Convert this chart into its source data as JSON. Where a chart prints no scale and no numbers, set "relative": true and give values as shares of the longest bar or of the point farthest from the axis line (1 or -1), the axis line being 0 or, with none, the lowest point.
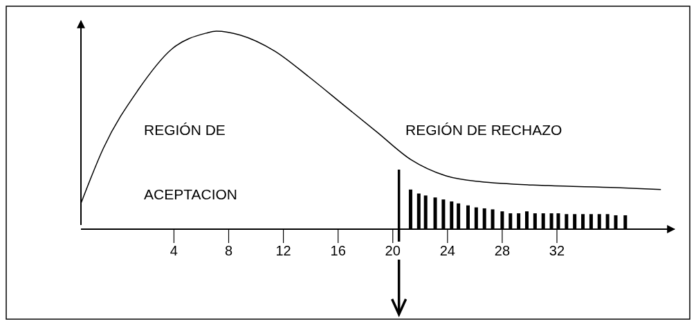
{
  "chart_data": {
    "type": "line",
    "relative": true,
    "xlim": [
      -2.8,
      40.6
    ],
    "xticks": [
      4,
      8,
      12,
      16,
      20,
      24,
      28,
      32
    ],
    "tick_labels": "x",
    "grid": false,
    "marker": "none",
    "line_style": "solid",
    "annotations": [
      "REGIÓN DE",
      "ACEPTACION",
      "REGIÓN DE RECHAZO"
    ],
    "ref_lines": [
      {
        "axis": "x",
        "value": 20.45,
        "color": "#000000"
      }
    ],
    "series": [
      {
        "color": "#000000",
        "x": [
          -2.8,
          -1.15,
          1.35,
          3.85,
          6.35,
          7.1,
          8.85,
          11.35,
          13.85,
          16.35,
          18.85,
          21.35,
          23.85,
          26.35,
          31.35,
          36.35,
          39.6
        ],
        "values": [
          0.13,
          0.41,
          0.7,
          0.91,
          0.99,
          1,
          0.98,
          0.9,
          0.77,
          0.63,
          0.49,
          0.35,
          0.27,
          0.24,
          0.22,
          0.21,
          0.2
        ]
      },
      {
        "type": "bar",
        "color": "#000000",
        "x": [
          21.3,
          21.9,
          22.4,
          23.1,
          23.7,
          24.3,
          24.8,
          25.5,
          26.1,
          26.7,
          27.3,
          28.0,
          28.6,
          29.2,
          29.8,
          30.4,
          31.0,
          31.6,
          32.1,
          32.7,
          33.3,
          33.9,
          34.5,
          35.1,
          35.7,
          36.3,
          37.0
        ],
        "values": [
          0.2,
          0.18,
          0.17,
          0.16,
          0.15,
          0.14,
          0.13,
          0.12,
          0.11,
          0.105,
          0.1,
          0.09,
          0.08,
          0.08,
          0.09,
          0.08,
          0.08,
          0.08,
          0.08,
          0.076,
          0.076,
          0.076,
          0.076,
          0.076,
          0.076,
          0.07,
          0.07
        ]
      }
    ]
  }
}
